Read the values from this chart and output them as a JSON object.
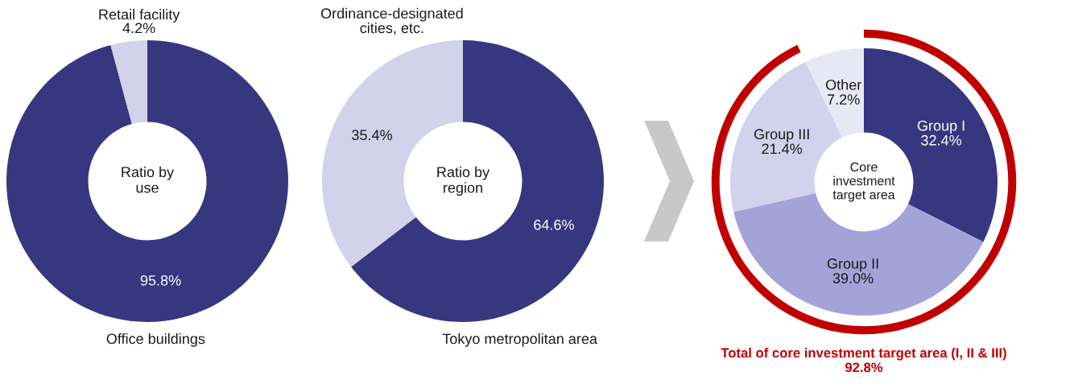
{
  "chart_data": [
    {
      "type": "donut",
      "title": "Ratio by use",
      "categories": [
        "Office buildings",
        "Retail facility"
      ],
      "values": [
        95.8,
        4.2
      ],
      "colors": [
        "#37377f",
        "#d2d2eb"
      ],
      "value_labels": [
        "95.8%",
        "4.2%"
      ]
    },
    {
      "type": "donut",
      "title": "Ratio by region",
      "categories": [
        "Tokyo metropolitan area",
        "Ordinance-designated cities, etc."
      ],
      "values": [
        64.6,
        35.4
      ],
      "colors": [
        "#37377f",
        "#d2d2eb"
      ],
      "value_labels": [
        "64.6%",
        "35.4%"
      ]
    },
    {
      "type": "donut",
      "title": "Core investment target area",
      "categories": [
        "Group I",
        "Group II",
        "Group III",
        "Other"
      ],
      "values": [
        32.4,
        39.0,
        21.4,
        7.2
      ],
      "colors": [
        "#37377f",
        "#a3a3d8",
        "#d2d2ec",
        "#e8e8f5"
      ],
      "value_labels": [
        "32.4%",
        "39.0%",
        "21.4%",
        "7.2%"
      ],
      "annotations": [
        "Total of core investment target area (I, II & III)\n92.8%"
      ]
    }
  ]
}
